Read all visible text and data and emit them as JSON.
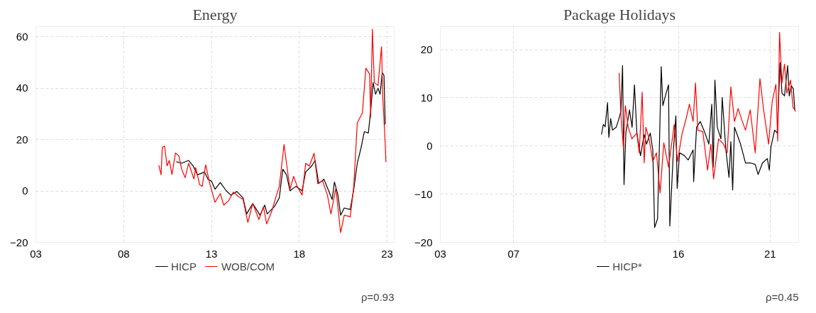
{
  "chart_data": [
    {
      "type": "line",
      "title": "Energy",
      "xlim": [
        2003,
        2023.4
      ],
      "ylim": [
        -20,
        64
      ],
      "xticks": [
        {
          "value": 2003,
          "label": "03"
        },
        {
          "value": 2008,
          "label": "08"
        },
        {
          "value": 2013,
          "label": "13"
        },
        {
          "value": 2018,
          "label": "18"
        },
        {
          "value": 2023,
          "label": "23"
        }
      ],
      "yticks": [
        -20,
        0,
        20,
        40,
        60
      ],
      "grid": true,
      "legend": "bottom",
      "line_style": "solid",
      "annotations": [
        "ρ=0.93"
      ],
      "series": [
        {
          "name": "HICP",
          "color": "#000000",
          "x": [
            2011.0,
            2011.3,
            2011.7,
            2011.97,
            2012.2,
            2012.6,
            2012.8,
            2013.0,
            2013.2,
            2013.5,
            2013.84,
            2014.1,
            2014.45,
            2014.8,
            2015.0,
            2015.35,
            2015.76,
            2016.03,
            2016.17,
            2016.58,
            2016.86,
            2017.06,
            2017.27,
            2017.47,
            2017.8,
            2018.16,
            2018.36,
            2018.7,
            2018.9,
            2019.1,
            2019.4,
            2019.67,
            2019.87,
            2020.0,
            2020.2,
            2020.35,
            2020.56,
            2020.9,
            2021.1,
            2021.3,
            2021.5,
            2021.7,
            2021.93,
            2022.06,
            2022.2,
            2022.34,
            2022.48,
            2022.6,
            2022.72,
            2022.82,
            2022.89
          ],
          "values": [
            11.4,
            10.8,
            11.9,
            9.6,
            6.3,
            7.4,
            4.6,
            3.8,
            0.7,
            3.3,
            0.1,
            -1.6,
            -0.2,
            -2.7,
            -8.9,
            -4.9,
            -9.4,
            -5.5,
            -8.9,
            -6.1,
            -2.7,
            8.5,
            6.3,
            0.1,
            1.8,
            0.1,
            7.4,
            9.7,
            11.9,
            2.9,
            4.6,
            0.1,
            -3.3,
            3.5,
            -1.6,
            -9.4,
            -6.6,
            -7.2,
            0.7,
            10.8,
            16.4,
            23.1,
            22.6,
            31,
            42.2,
            37.7,
            40,
            37.7,
            46.1,
            45,
            25.9
          ]
        },
        {
          "name": "WOB/COM",
          "color": "#ff0000",
          "x": [
            2010.0,
            2010.13,
            2010.2,
            2010.33,
            2010.47,
            2010.6,
            2010.75,
            2010.95,
            2011.15,
            2011.3,
            2011.5,
            2011.7,
            2012.0,
            2012.1,
            2012.33,
            2012.47,
            2012.67,
            2012.88,
            2013.2,
            2013.5,
            2013.7,
            2013.97,
            2014.25,
            2014.52,
            2014.8,
            2015.07,
            2015.35,
            2015.7,
            2015.96,
            2016.14,
            2016.44,
            2016.65,
            2016.86,
            2016.99,
            2017.13,
            2017.27,
            2017.47,
            2017.68,
            2017.88,
            2018.16,
            2018.36,
            2018.57,
            2018.84,
            2019.05,
            2019.32,
            2019.6,
            2019.8,
            2020.08,
            2020.35,
            2020.56,
            2020.9,
            2021.1,
            2021.3,
            2021.59,
            2021.79,
            2022.0,
            2022.06,
            2022.16,
            2022.27,
            2022.48,
            2022.68,
            2022.75,
            2022.89,
            2022.93
          ],
          "values": [
            10.1,
            6.3,
            17,
            17.5,
            9.8,
            11.9,
            6.4,
            14.8,
            13.6,
            8.5,
            5.2,
            10.8,
            4.7,
            9.1,
            2.4,
            1.8,
            10.2,
            3.5,
            -4.4,
            -1,
            -5.5,
            -3.8,
            -0.4,
            -2.1,
            -3.3,
            -12.2,
            -4.9,
            -11.1,
            -6.1,
            -12.8,
            -7.7,
            -2.7,
            1.8,
            9.7,
            18.1,
            10.8,
            0.7,
            5.7,
            1.8,
            -1.6,
            10.8,
            9.7,
            14.7,
            2.9,
            4,
            -1.6,
            -8.9,
            1.2,
            -16.2,
            -9.4,
            -10,
            1.8,
            26.5,
            30.4,
            47.8,
            45.6,
            28.7,
            63,
            42.2,
            41.1,
            56.2,
            36.6,
            18.6,
            11.3
          ]
        }
      ]
    },
    {
      "type": "line",
      "title": "Package Holidays",
      "xlim": [
        2003,
        2022.56
      ],
      "ylim": [
        -20,
        24.8
      ],
      "xticks": [
        {
          "value": 2003,
          "label": "03"
        },
        {
          "value": 2007,
          "label": "07"
        },
        {
          "value": 2012,
          "label": null
        },
        {
          "value": 2016,
          "label": "16"
        },
        {
          "value": 2021,
          "label": "21"
        }
      ],
      "yticks": [
        -20,
        -10,
        0,
        10,
        20
      ],
      "grid": true,
      "legend": "bottom",
      "line_style": "solid",
      "annotations": [
        "ρ=0.45"
      ],
      "series": [
        {
          "name": "HICP*",
          "color": "#000000",
          "x": [
            2011.8,
            2011.9,
            2012.0,
            2012.13,
            2012.2,
            2012.3,
            2012.4,
            2012.6,
            2012.73,
            2012.86,
            2012.95,
            2013.03,
            2013.13,
            2013.33,
            2013.47,
            2013.6,
            2013.73,
            2013.93,
            2014.13,
            2014.26,
            2014.46,
            2014.6,
            2014.7,
            2014.86,
            2014.97,
            2015.06,
            2015.15,
            2015.33,
            2015.46,
            2015.53,
            2015.73,
            2015.86,
            2015.93,
            2016.06,
            2016.33,
            2016.53,
            2016.8,
            2016.83,
            2016.99,
            2017.19,
            2017.39,
            2017.66,
            2017.82,
            2017.9,
            2017.99,
            2018.12,
            2018.32,
            2018.39,
            2018.59,
            2018.76,
            2018.86,
            2018.96,
            2019.06,
            2019.39,
            2019.66,
            2019.92,
            2020.19,
            2020.35,
            2020.59,
            2020.85,
            2020.96,
            2021.05,
            2021.25,
            2021.39,
            2021.55,
            2021.65,
            2021.79,
            2021.96,
            2022.05,
            2022.16,
            2022.27,
            2022.35
          ],
          "values": [
            2.4,
            4.5,
            4,
            9,
            1.8,
            5.7,
            3.3,
            3.9,
            5.4,
            7.2,
            16.7,
            -8,
            2.7,
            7.5,
            3.9,
            12.7,
            2.7,
            -2,
            2.4,
            0.4,
            2.7,
            -0.8,
            -16.9,
            -15.1,
            1.5,
            16.5,
            8.4,
            11,
            12.7,
            -16.6,
            -0.5,
            6.3,
            -8.8,
            -1.4,
            -2,
            -2.9,
            -0.8,
            -7.4,
            3.9,
            5.1,
            3.3,
            0.4,
            8.7,
            -4.4,
            13.7,
            3.9,
            1.5,
            10.1,
            -0.8,
            -6.5,
            0.9,
            -9.1,
            3.9,
            0.4,
            -3.5,
            -3.5,
            -3.8,
            -5.9,
            -3.5,
            -2.6,
            -5,
            -0.2,
            3.3,
            2.7,
            17.3,
            11,
            10.4,
            16.7,
            10.4,
            12.5,
            11.9,
            7.5
          ]
        },
        {
          "color": "#ff0000",
          "x": [
            2012.76,
            2012.87,
            2013.0,
            2013.1,
            2013.26,
            2013.46,
            2013.73,
            2013.86,
            2014.02,
            2014.13,
            2014.22,
            2014.4,
            2014.6,
            2014.8,
            2015.0,
            2015.2,
            2015.46,
            2015.77,
            2015.95,
            2016.19,
            2016.42,
            2016.6,
            2016.8,
            2016.93,
            2017.06,
            2017.33,
            2017.59,
            2017.77,
            2017.92,
            2018.19,
            2018.46,
            2018.66,
            2018.86,
            2019.06,
            2019.26,
            2019.46,
            2019.66,
            2019.92,
            2020.19,
            2020.45,
            2020.65,
            2020.92,
            2021.12,
            2021.32,
            2021.42,
            2021.52,
            2021.65,
            2021.79,
            2021.92,
            2022.12,
            2022.25,
            2022.4
          ],
          "values": [
            15.2,
            5.7,
            -0.5,
            8.4,
            3.9,
            1.5,
            2.7,
            -1.4,
            11.2,
            -3.5,
            3.9,
            1.5,
            -3.2,
            -1.4,
            -9.7,
            0.7,
            -4.4,
            4.5,
            -3.2,
            2.4,
            5.7,
            8.7,
            5.1,
            13.1,
            3.3,
            3,
            -5,
            0.4,
            -6.8,
            1.5,
            0.4,
            -1.4,
            12.3,
            5.1,
            7.8,
            5.4,
            3.3,
            7.5,
            -1.4,
            14,
            7.5,
            0.4,
            9.3,
            12.8,
            1,
            23.6,
            13.1,
            17,
            11,
            13.7,
            8.1,
            7.2
          ]
        }
      ]
    }
  ]
}
